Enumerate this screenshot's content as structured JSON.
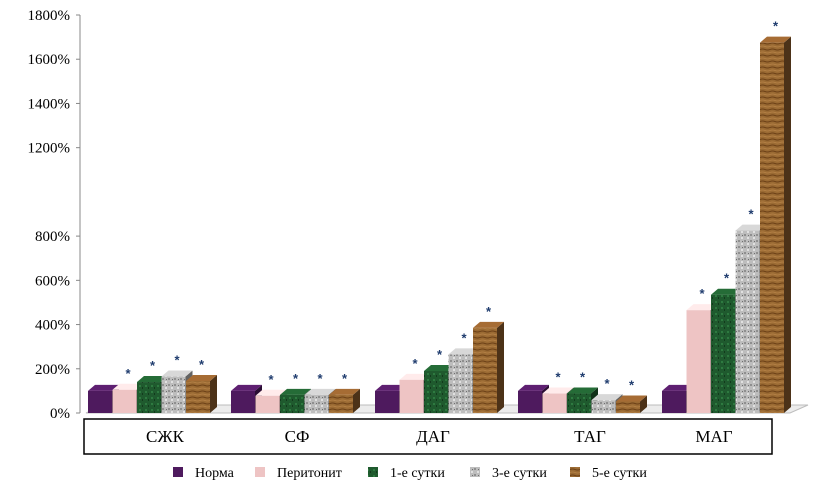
{
  "chart_data": {
    "type": "bar",
    "title": "",
    "xlabel": "",
    "ylabel": "",
    "ylim": [
      0,
      1800
    ],
    "y_ticks": [
      "0%",
      "200%",
      "400%",
      "600%",
      "800%",
      "1200%",
      "1400%",
      "1600%",
      "1800%"
    ],
    "y_tick_values": [
      0,
      200,
      400,
      600,
      800,
      1200,
      1400,
      1600,
      1800
    ],
    "y_unit": "%",
    "grid": false,
    "legend_position": "bottom",
    "categories": [
      "СЖК",
      "СФ",
      "ДАГ",
      "ТАГ",
      "МАГ"
    ],
    "series": [
      {
        "name": "Норма",
        "values": [
          100,
          100,
          100,
          100,
          100
        ],
        "color": "#4e1a5e",
        "stars": [
          false,
          false,
          false,
          false,
          false
        ]
      },
      {
        "name": "Перитонит",
        "values": [
          105,
          78,
          150,
          88,
          465
        ],
        "color": "#eec4c4",
        "stars": [
          true,
          true,
          true,
          true,
          true
        ]
      },
      {
        "name": "1-е сутки",
        "values": [
          140,
          82,
          190,
          88,
          535
        ],
        "color": "#1f5a2e",
        "stars": [
          true,
          true,
          true,
          true,
          true
        ]
      },
      {
        "name": "3-е сутки",
        "values": [
          165,
          82,
          265,
          58,
          825
        ],
        "color": "#b4b4b4",
        "stars": [
          true,
          true,
          true,
          true,
          true
        ]
      },
      {
        "name": "5-е сутки",
        "values": [
          145,
          82,
          385,
          52,
          1675
        ],
        "color": "#8a5a2b",
        "stars": [
          true,
          true,
          true,
          true,
          true
        ]
      }
    ],
    "significance_marker": "*"
  }
}
